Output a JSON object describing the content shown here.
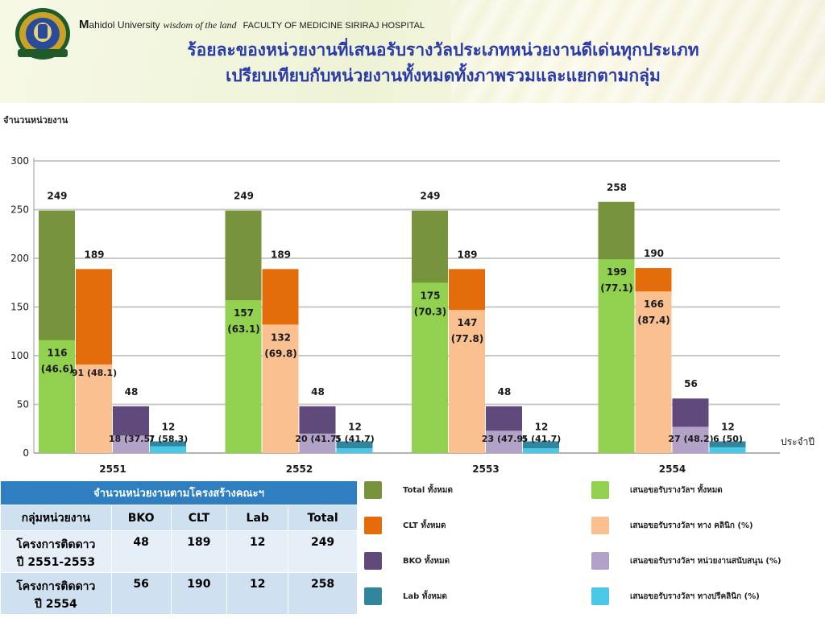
{
  "header": {
    "brand_m": "M",
    "brand_university": "ahidol University",
    "brand_wisdom": "wisdom of the land",
    "brand_faculty": "FACULTY OF MEDICINE SIRIRAJ HOSPITAL",
    "title_line1": "ร้อยละของหน่วยงานที่เสนอรับรางวัลประเภทหน่วยงานดีเด่นทุกประเภท",
    "title_line2": "เปรียบเทียบกับหน่วยงานทั้งหมดทั้งภาพรวมและแยกตามกลุ่ม"
  },
  "chart_data": {
    "type": "bar",
    "ylabel": "จำนวนหน่วยงาน",
    "xlabel": "ประจำปี",
    "ylim": [
      0,
      300
    ],
    "yticks": [
      0,
      50,
      100,
      150,
      200,
      250,
      300
    ],
    "grid": true,
    "categories": [
      "2551",
      "2552",
      "2553",
      "2554"
    ],
    "groups": [
      {
        "name": "Total",
        "totals": [
          249,
          249,
          249,
          258
        ],
        "submitted": [
          116,
          157,
          175,
          199
        ],
        "pct": [
          "46.6",
          "63.1",
          "70.3",
          "77.1"
        ]
      },
      {
        "name": "CLT",
        "totals": [
          189,
          189,
          189,
          190
        ],
        "submitted": [
          91,
          132,
          147,
          166
        ],
        "pct": [
          "48.1",
          "69.8",
          "77.8",
          "87.4"
        ]
      },
      {
        "name": "BKO",
        "totals": [
          48,
          48,
          48,
          56
        ],
        "submitted": [
          18,
          20,
          23,
          27
        ],
        "pct": [
          "37.5",
          "41.7",
          "47.9",
          "48.2"
        ]
      },
      {
        "name": "Lab",
        "totals": [
          12,
          12,
          12,
          12
        ],
        "submitted": [
          7,
          5,
          5,
          6
        ],
        "pct": [
          "58.3",
          "41.7",
          "41.7",
          "50"
        ]
      }
    ],
    "legend": [
      {
        "label": "Total ทั้งหมด",
        "color": "#77933c"
      },
      {
        "label": "เสนอขอรับรางวัลฯ ทั้งหมด",
        "color": "#92d050"
      },
      {
        "label": "CLT ทั้งหมด",
        "color": "#e46c0a"
      },
      {
        "label": "เสนอขอรับรางวัลฯ ทาง คลินิก (%)",
        "color": "#fac090"
      },
      {
        "label": "BKO ทั้งหมด",
        "color": "#604a7b"
      },
      {
        "label": "เสนอขอรับรางวัลฯ หน่วยงานสนับสนุน (%)",
        "color": "#b3a2c7"
      },
      {
        "label": "Lab ทั้งหมด",
        "color": "#31859c"
      },
      {
        "label": "เสนอขอรับรางวัลฯ  ทางปรีคลินิก (%)",
        "color": "#4bc8e8"
      }
    ]
  },
  "table": {
    "caption": "จำนวนหน่วยงานตามโครงสร้างคณะฯ",
    "headers": [
      "กลุ่มหน่วยงาน",
      "BKO",
      "CLT",
      "Lab",
      "Total"
    ],
    "rows": [
      {
        "label_l1": "โครงการติดดาว",
        "label_l2": "ปี 2551-2553",
        "bko": "48",
        "clt": "189",
        "lab": "12",
        "total": "249"
      },
      {
        "label_l1": "โครงการติดดาว",
        "label_l2": "ปี 2554",
        "bko": "56",
        "clt": "190",
        "lab": "12",
        "total": "258"
      }
    ]
  }
}
